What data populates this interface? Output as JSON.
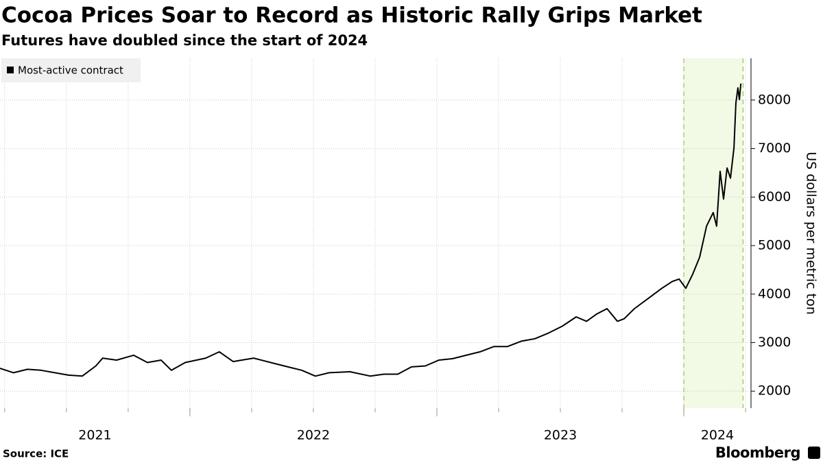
{
  "chart_data": {
    "type": "line",
    "title": "Cocoa Prices Soar to Record as Historic Rally Grips Market",
    "subtitle": "Futures have doubled since the start of 2024",
    "y_axis_label": "US dollars per metric ton",
    "source": "Source: ICE",
    "brand": "Bloomberg",
    "x": [
      2021.231,
      2021.286,
      2021.342,
      2021.397,
      2021.453,
      2021.508,
      2021.564,
      2021.619,
      2021.647,
      2021.703,
      2021.772,
      2021.828,
      2021.883,
      2021.925,
      2021.981,
      2022.064,
      2022.119,
      2022.175,
      2022.258,
      2022.342,
      2022.397,
      2022.453,
      2022.508,
      2022.564,
      2022.647,
      2022.731,
      2022.786,
      2022.842,
      2022.897,
      2022.953,
      2023.008,
      2023.064,
      2023.119,
      2023.175,
      2023.231,
      2023.286,
      2023.342,
      2023.397,
      2023.453,
      2023.508,
      2023.564,
      2023.606,
      2023.647,
      2023.689,
      2023.731,
      2023.758,
      2023.8,
      2023.856,
      2023.911,
      2023.953,
      2023.981,
      2024.008,
      2024.036,
      2024.064,
      2024.092,
      2024.119,
      2024.133,
      2024.147,
      2024.161,
      2024.175,
      2024.189,
      2024.203,
      2024.211,
      2024.219,
      2024.225,
      2024.231
    ],
    "series": [
      {
        "name": "Most-active contract",
        "color": "#000000",
        "values": [
          2470,
          2380,
          2450,
          2430,
          2380,
          2330,
          2310,
          2520,
          2680,
          2640,
          2740,
          2590,
          2640,
          2430,
          2590,
          2680,
          2810,
          2610,
          2680,
          2570,
          2500,
          2430,
          2310,
          2380,
          2400,
          2310,
          2350,
          2350,
          2500,
          2520,
          2640,
          2670,
          2740,
          2810,
          2920,
          2920,
          3030,
          3080,
          3200,
          3340,
          3530,
          3440,
          3590,
          3700,
          3440,
          3490,
          3700,
          3910,
          4120,
          4260,
          4310,
          4120,
          4410,
          4760,
          5400,
          5680,
          5400,
          6530,
          5960,
          6600,
          6390,
          7020,
          7940,
          8250,
          8010,
          8340
        ]
      }
    ],
    "xlim": [
      2021.231,
      2024.272
    ],
    "xticks": [
      2021,
      2022,
      2023,
      2024
    ],
    "x_minor_ticks": [
      2021.25,
      2021.5,
      2021.75,
      2022,
      2022.25,
      2022.5,
      2022.75,
      2023,
      2023.25,
      2023.5,
      2023.75,
      2024,
      2024.25
    ],
    "ylim": [
      1650,
      8860
    ],
    "yticks": [
      2000,
      3000,
      4000,
      5000,
      6000,
      7000,
      8000
    ],
    "grid": true,
    "highlight": {
      "range": [
        2024.0,
        2024.24
      ],
      "color": "#f2f9e4",
      "edge_color": "#9ad35a"
    },
    "legend": "upper left"
  }
}
